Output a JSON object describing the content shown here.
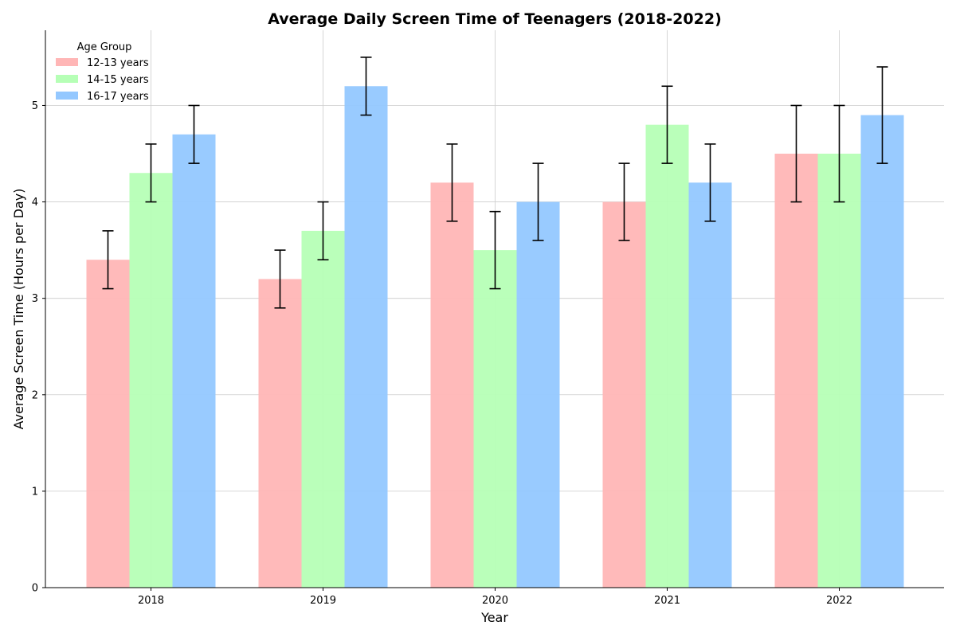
{
  "chart_data": {
    "type": "bar",
    "title": "Average Daily Screen Time of Teenagers (2018-2022)",
    "xlabel": "Year",
    "ylabel": "Average Screen Time (Hours per Day)",
    "categories": [
      "2018",
      "2019",
      "2020",
      "2021",
      "2022"
    ],
    "ylim": [
      0,
      5.78
    ],
    "yticks": [
      0,
      1,
      2,
      3,
      4,
      5
    ],
    "grid": true,
    "legend": {
      "title": "Age Group",
      "placement": "top-left"
    },
    "series": [
      {
        "name": "12-13 years",
        "color": "#ffb6b6",
        "values": [
          3.4,
          3.2,
          4.2,
          4.0,
          4.5
        ],
        "errors": [
          0.3,
          0.3,
          0.4,
          0.4,
          0.5
        ]
      },
      {
        "name": "14-15 years",
        "color": "#b6ffb6",
        "values": [
          4.3,
          3.7,
          3.5,
          4.8,
          4.5
        ],
        "errors": [
          0.3,
          0.3,
          0.4,
          0.4,
          0.5
        ]
      },
      {
        "name": "16-17 years",
        "color": "#94c8ff",
        "values": [
          4.7,
          5.2,
          4.0,
          4.2,
          4.9
        ],
        "errors": [
          0.3,
          0.3,
          0.4,
          0.4,
          0.5
        ]
      }
    ]
  }
}
